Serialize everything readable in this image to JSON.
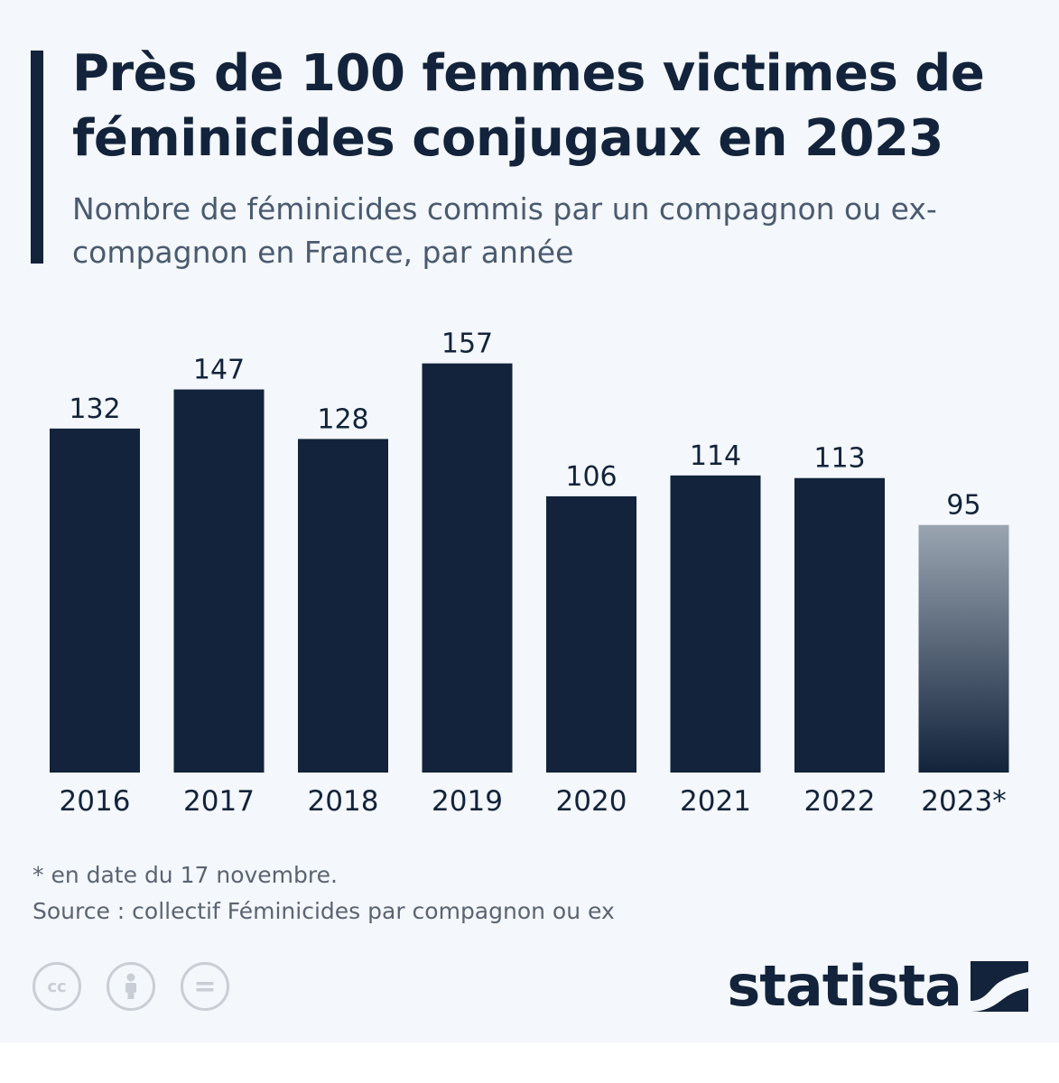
{
  "header": {
    "title": "Près de 100 femmes victimes de féminicides conjugaux en 2023",
    "subtitle": "Nombre de féminicides commis par un compagnon ou ex-compagnon en France, par année"
  },
  "chart_data": {
    "type": "bar",
    "categories": [
      "2016",
      "2017",
      "2018",
      "2019",
      "2020",
      "2021",
      "2022",
      "2023*"
    ],
    "values": [
      132,
      147,
      128,
      157,
      106,
      114,
      113,
      95
    ],
    "title": "Près de 100 femmes victimes de féminicides conjugaux en 2023",
    "subtitle": "Nombre de féminicides commis par un compagnon ou ex-compagnon en France, par année",
    "xlabel": "",
    "ylabel": "",
    "ylim": [
      0,
      160
    ],
    "grid": false,
    "data_labels": true,
    "highlighted_category": "2023*",
    "colors": {
      "bar": "#12233b",
      "highlight_top": "#9aa5b1"
    }
  },
  "footer": {
    "footnote": "* en date du 17 novembre.",
    "source": "Source : collectif Féminicides par compagnon ou ex",
    "license_icons": [
      "creative-commons-icon",
      "attribution-person-icon",
      "no-derivatives-icon"
    ],
    "brand": "statista"
  }
}
